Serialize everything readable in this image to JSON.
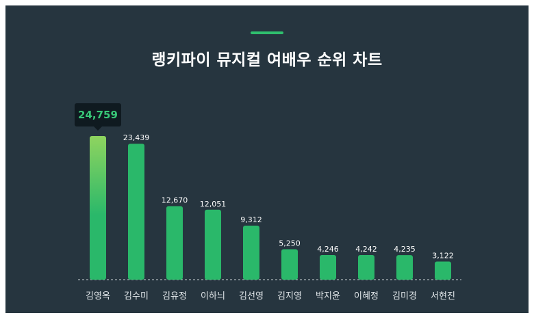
{
  "header": {
    "title": "랭키파이 뮤지컬 여배우 순위 차트"
  },
  "colors": {
    "background": "#26353f",
    "bar": "#2ab86a",
    "bar_top_highlight": "#8fd45f",
    "tooltip_bg": "#0f1a20",
    "tooltip_text": "#38c878",
    "accent": "#2fbf6e"
  },
  "chart_data": {
    "type": "bar",
    "title": "랭키파이 뮤지컬 여배우 순위 차트",
    "categories": [
      "김영옥",
      "김수미",
      "김유정",
      "이하늬",
      "김선영",
      "김지영",
      "박지윤",
      "이혜정",
      "김미경",
      "서현진"
    ],
    "values": [
      24759,
      23439,
      12670,
      12051,
      9312,
      5250,
      4246,
      4242,
      4235,
      3122
    ],
    "value_labels": [
      "24,759",
      "23,439",
      "12,670",
      "12,051",
      "9,312",
      "5,250",
      "4,246",
      "4,242",
      "4,235",
      "3,122"
    ],
    "highlighted": {
      "index": 0,
      "label": "24,759"
    },
    "ylim": [
      0,
      24759
    ],
    "grid": false,
    "legend": "none"
  }
}
